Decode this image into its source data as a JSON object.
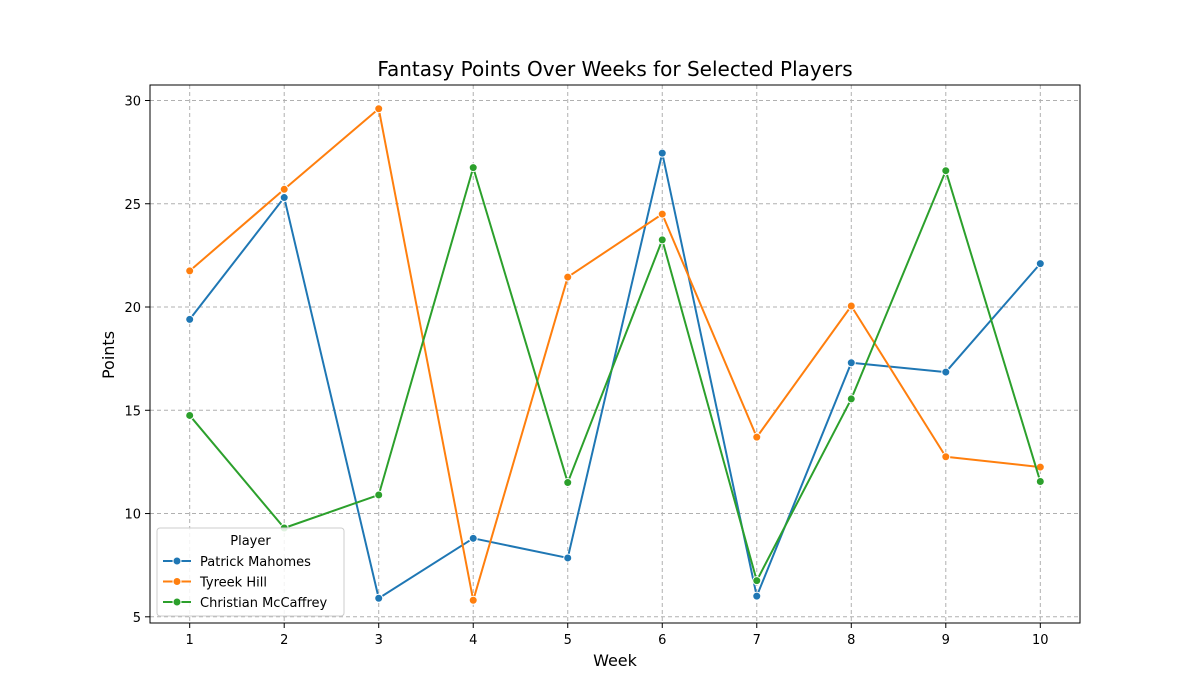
{
  "chart_data": {
    "type": "line",
    "title": "Fantasy Points Over Weeks for Selected Players",
    "xlabel": "Week",
    "ylabel": "Points",
    "x": [
      1,
      2,
      3,
      4,
      5,
      6,
      7,
      8,
      9,
      10
    ],
    "xlim": [
      0.58,
      10.42
    ],
    "ylim": [
      4.7,
      30.75
    ],
    "yticks": [
      5,
      10,
      15,
      20,
      25,
      30
    ],
    "grid": true,
    "legend": {
      "title": "Player",
      "placement": "lower-left"
    },
    "series": [
      {
        "name": "Patrick Mahomes",
        "color": "#1f77b4",
        "values": [
          19.4,
          25.3,
          5.9,
          8.8,
          7.85,
          27.45,
          6.0,
          17.3,
          16.85,
          22.1
        ]
      },
      {
        "name": "Tyreek Hill",
        "color": "#ff7f0e",
        "values": [
          21.75,
          25.7,
          29.6,
          5.8,
          21.45,
          24.5,
          13.7,
          20.05,
          12.75,
          12.25
        ]
      },
      {
        "name": "Christian McCaffrey",
        "color": "#2ca02c",
        "values": [
          14.75,
          9.3,
          10.9,
          26.75,
          11.5,
          23.25,
          6.75,
          15.55,
          26.6,
          11.55
        ]
      }
    ]
  }
}
